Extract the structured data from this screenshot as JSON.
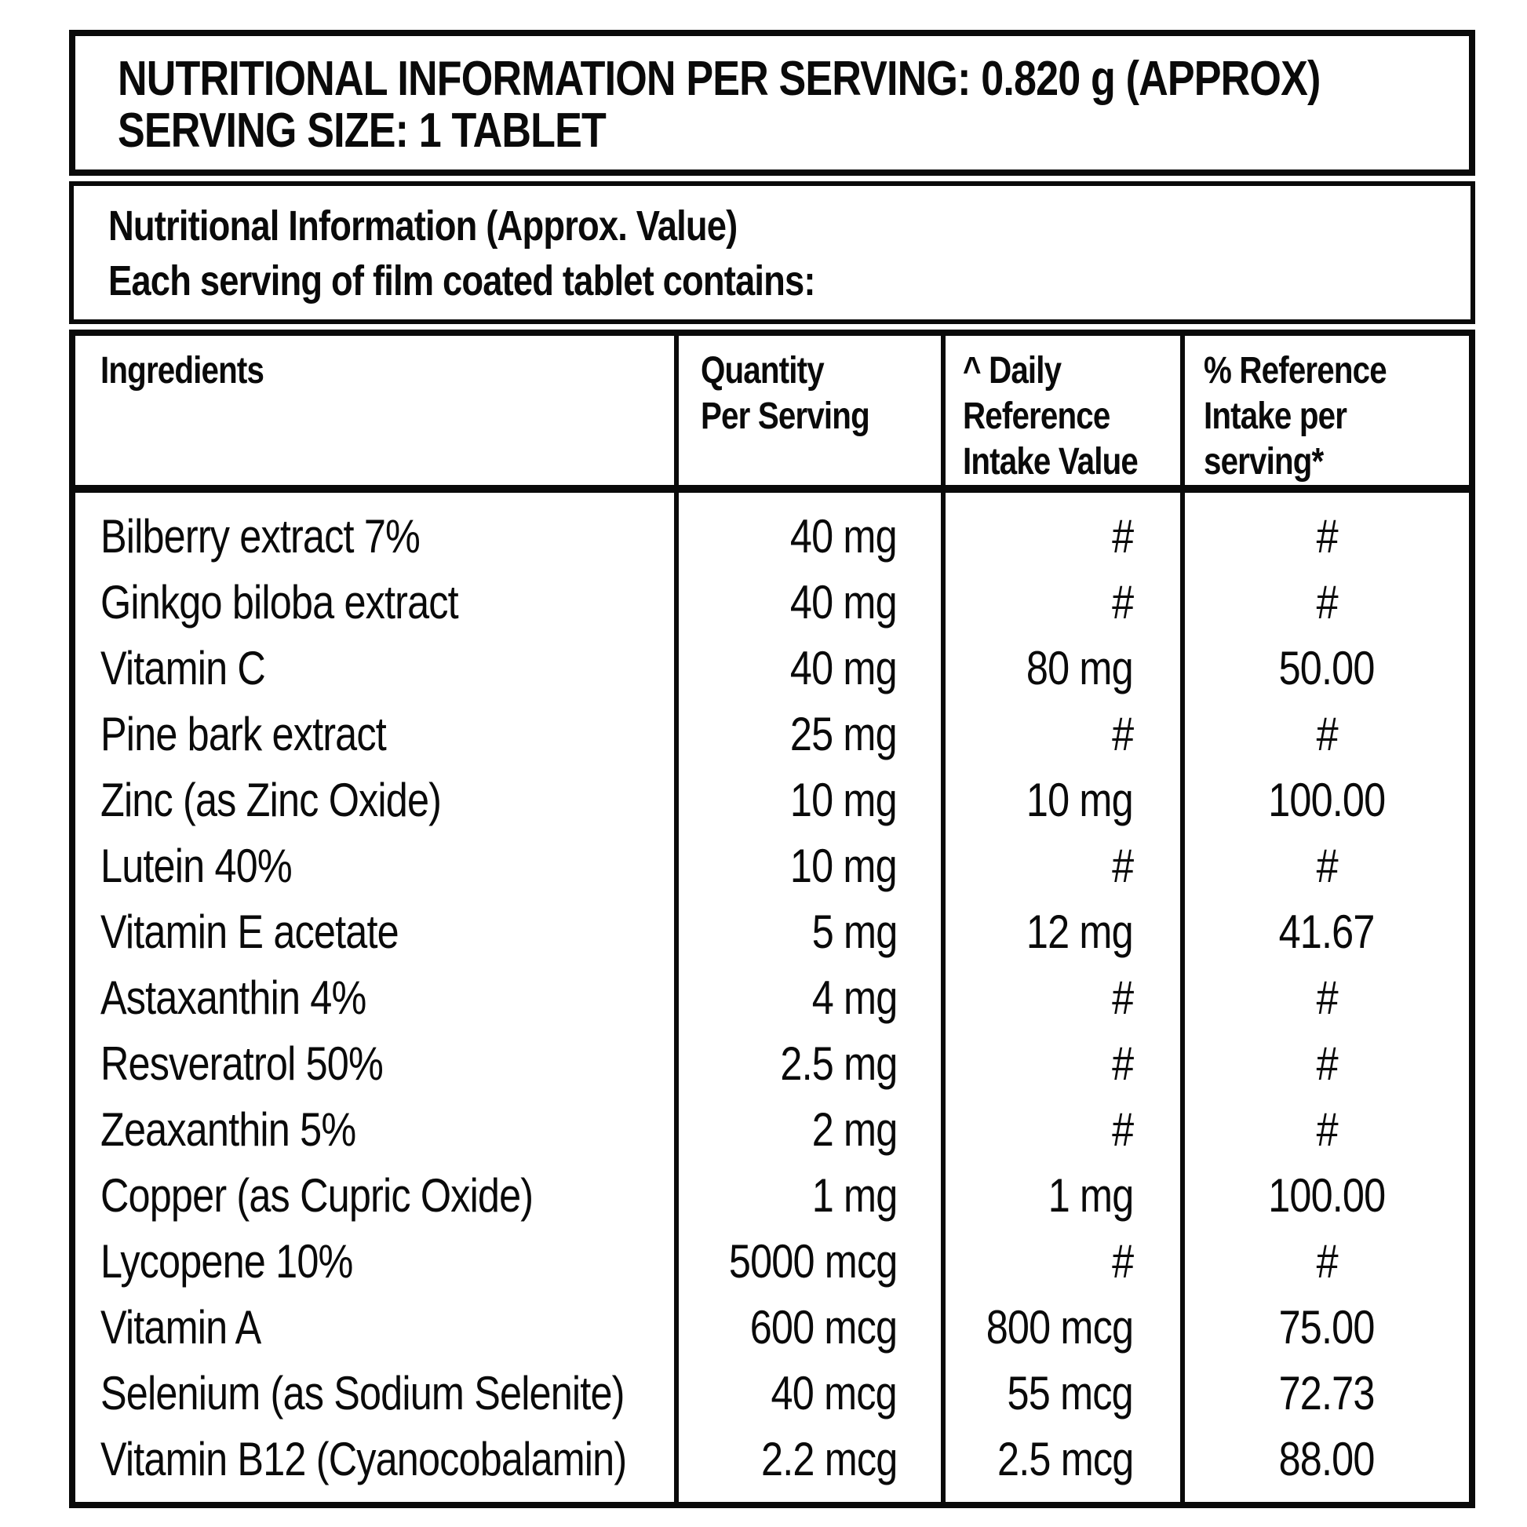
{
  "title_block": {
    "line1": "NUTRITIONAL INFORMATION PER SERVING: 0.820 g (APPROX)",
    "line2": "SERVING SIZE: 1 TABLET"
  },
  "subtitle_block": {
    "line1": "Nutritional Information (Approx. Value)",
    "line2": "Each serving of film coated tablet contains:"
  },
  "table": {
    "columns": [
      {
        "id": "ingredient",
        "label_lines": [
          "Ingredients"
        ]
      },
      {
        "id": "quantity",
        "label_lines": [
          "Quantity",
          "Per Serving"
        ]
      },
      {
        "id": "dri",
        "label_lines": [
          "^ Daily",
          "Reference",
          "Intake Value"
        ]
      },
      {
        "id": "pct",
        "label_lines": [
          "% Reference",
          "Intake per",
          "serving*"
        ]
      }
    ],
    "rows": [
      {
        "ingredient": "Bilberry extract 7%",
        "quantity": "40 mg",
        "dri": "#",
        "pct": "#"
      },
      {
        "ingredient": "Ginkgo biloba extract",
        "quantity": "40 mg",
        "dri": "#",
        "pct": "#"
      },
      {
        "ingredient": "Vitamin C",
        "quantity": "40 mg",
        "dri": "80 mg",
        "pct": "50.00"
      },
      {
        "ingredient": "Pine bark extract",
        "quantity": "25 mg",
        "dri": "#",
        "pct": "#"
      },
      {
        "ingredient": "Zinc (as Zinc Oxide)",
        "quantity": "10 mg",
        "dri": "10 mg",
        "pct": "100.00"
      },
      {
        "ingredient": "Lutein 40%",
        "quantity": "10 mg",
        "dri": "#",
        "pct": "#"
      },
      {
        "ingredient": "Vitamin E acetate",
        "quantity": "5 mg",
        "dri": "12 mg",
        "pct": "41.67"
      },
      {
        "ingredient": "Astaxanthin 4%",
        "quantity": "4 mg",
        "dri": "#",
        "pct": "#"
      },
      {
        "ingredient": "Resveratrol 50%",
        "quantity": "2.5 mg",
        "dri": "#",
        "pct": "#"
      },
      {
        "ingredient": "Zeaxanthin 5%",
        "quantity": "2 mg",
        "dri": "#",
        "pct": "#"
      },
      {
        "ingredient": "Copper (as Cupric Oxide)",
        "quantity": "1 mg",
        "dri": "1 mg",
        "pct": "100.00"
      },
      {
        "ingredient": "Lycopene 10%",
        "quantity": "5000 mcg",
        "dri": "#",
        "pct": "#"
      },
      {
        "ingredient": "Vitamin A",
        "quantity": "600 mcg",
        "dri": "800 mcg",
        "pct": "75.00"
      },
      {
        "ingredient": "Selenium (as Sodium Selenite)",
        "quantity": "40 mcg",
        "dri": "55 mcg",
        "pct": "72.73"
      },
      {
        "ingredient": "Vitamin B12 (Cyanocobalamin)",
        "quantity": "2.2 mcg",
        "dri": "2.5 mcg",
        "pct": "88.00"
      }
    ]
  }
}
